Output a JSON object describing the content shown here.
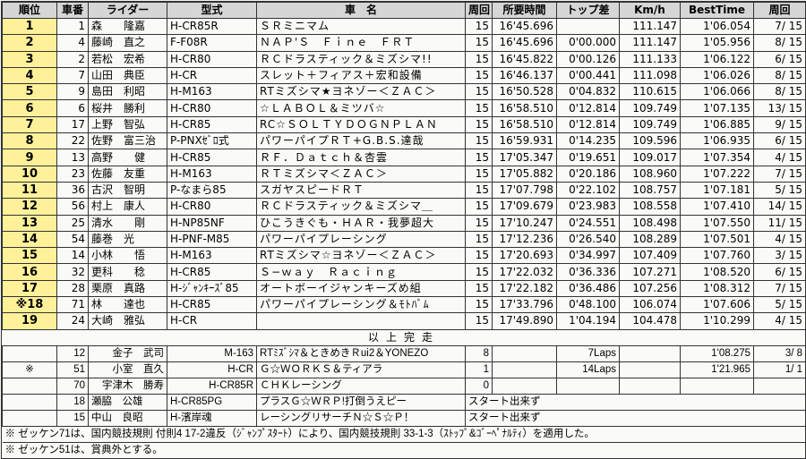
{
  "headers": [
    "順位",
    "車番",
    "ライダー",
    "型式",
    "車　名",
    "周回",
    "所要時間",
    "トップ差",
    "Km/h",
    "BestTime",
    "周回"
  ],
  "finished": [
    [
      "1",
      "1",
      "森　　隆嘉",
      "H-CR85R",
      "ＳＲミニマム",
      "15",
      "16'45.696",
      "",
      "111.147",
      "1'06.054",
      "7/ 15"
    ],
    [
      "2",
      "4",
      "藤崎　直之",
      "F-F08R",
      "ＮＡＰ'Ｓ　Ｆｉｎｅ　ＦＲＴ",
      "15",
      "16'45.696",
      "0'00.000",
      "111.147",
      "1'05.956",
      "8/ 15"
    ],
    [
      "3",
      "2",
      "若松　宏希",
      "H-CR80",
      "ＲＣドラスティック＆ミズシマ!!",
      "15",
      "16'45.822",
      "0'00.126",
      "111.133",
      "1'06.122",
      "6/ 15"
    ],
    [
      "4",
      "7",
      "山田　典臣",
      "H-CR",
      "スレット＋フィアス＋宏和設備",
      "15",
      "16'46.137",
      "0'00.441",
      "111.098",
      "1'06.026",
      "8/ 15"
    ],
    [
      "5",
      "9",
      "島田　利昭",
      "H-M163",
      "RTミズシマ★ヨネゾー＜ＺＡＣ＞",
      "15",
      "16'50.528",
      "0'04.832",
      "110.615",
      "1'06.066",
      "8/ 15"
    ],
    [
      "6",
      "6",
      "桜井　勝利",
      "H-CR80",
      "☆ＬＡＢＯＬ＆ミツバ☆",
      "15",
      "16'58.510",
      "0'12.814",
      "109.749",
      "1'07.135",
      "13/ 15"
    ],
    [
      "7",
      "17",
      "上野　智弘",
      "H-CR85",
      "RC☆ＳＯＬＴＹＤＯＧＮＰＬＡＮ",
      "15",
      "16'58.510",
      "0'12.814",
      "109.749",
      "1'06.885",
      "9/ 15"
    ],
    [
      "8",
      "22",
      "佐野　富三治",
      "P-PNXｾﾞﾛ式",
      "パワーパイプＲＴ+G.B.S.達哉",
      "15",
      "16'59.931",
      "0'14.235",
      "109.596",
      "1'06.935",
      "6/ 15"
    ],
    [
      "9",
      "13",
      "高野　　健",
      "H-CR85",
      "ＲＦ．Ｄａｔｃｈ＆杏雲",
      "15",
      "17'05.347",
      "0'19.651",
      "109.017",
      "1'07.354",
      "4/ 15"
    ],
    [
      "10",
      "23",
      "佐藤　友重",
      "H-M163",
      "ＲＴミズシマ＜ＺＡＣ＞",
      "15",
      "17'05.882",
      "0'20.186",
      "108.960",
      "1'07.222",
      "7/ 15"
    ],
    [
      "11",
      "36",
      "古沢　智明",
      "P-なまら85",
      "スガヤスピードＲＴ",
      "15",
      "17'07.798",
      "0'22.102",
      "108.757",
      "1'07.181",
      "5/ 15"
    ],
    [
      "12",
      "56",
      "村上　康人",
      "H-CR80",
      "ＲＣドラスティック＆ミズシマ＿",
      "15",
      "17'09.679",
      "0'23.983",
      "108.558",
      "1'07.410",
      "14/ 15"
    ],
    [
      "13",
      "25",
      "清水　　剛",
      "H-NP85NF",
      "ひこうきぐも・ＨＡＲ・我夢超大",
      "15",
      "17'10.247",
      "0'24.551",
      "108.498",
      "1'07.550",
      "11/ 15"
    ],
    [
      "14",
      "54",
      "藤巻　光",
      "H-PNF-M85",
      "パワーパイプレーシング",
      "15",
      "17'12.236",
      "0'26.540",
      "108.289",
      "1'07.501",
      "4/ 15"
    ],
    [
      "15",
      "14",
      "小林　　悟",
      "H-M163",
      "RTミズシマ☆ヨネゾー＜ＺＡＣ＞",
      "15",
      "17'20.693",
      "0'34.997",
      "107.409",
      "1'07.760",
      "3/ 15"
    ],
    [
      "16",
      "32",
      "更科　　稔",
      "H-CR85",
      "Ｓ−ｗａｙ　Ｒａｃｉｎｇ",
      "15",
      "17'22.032",
      "0'36.336",
      "107.271",
      "1'08.520",
      "6/ 15"
    ],
    [
      "17",
      "28",
      "栗原　真路",
      "H-ｼﾞｬﾝｷｰｽﾞ85",
      "オートボーイジャンキーズめ組",
      "15",
      "17'22.182",
      "0'36.486",
      "107.256",
      "1'08.312",
      "7/ 15"
    ],
    [
      "※18",
      "71",
      "林　　達也",
      "H-CR85",
      "パワーパイプレーシング＆ﾓﾄﾊﾞﾑ",
      "15",
      "17'33.796",
      "0'48.100",
      "106.074",
      "1'07.606",
      "5/ 15"
    ],
    [
      "19",
      "24",
      "大崎　雅弘",
      "H-CR",
      "",
      "15",
      "17'49.890",
      "1'04.194",
      "104.478",
      "1'10.299",
      "4/ 15"
    ]
  ],
  "finished_label": "以上完走",
  "others": [
    [
      "",
      "12",
      "金子　武司",
      "M-163",
      "RTﾐｽﾞｼﾏ＆ときめきＲui2＆YONEZO",
      "8",
      "",
      "7Laps",
      "",
      "1'08.275",
      "3/ 8"
    ],
    [
      "※",
      "51",
      "小室　直久",
      "H-CR",
      "Ｇ☆ＷＯＲＫＳ＆ティアラ",
      "1",
      "",
      "14Laps",
      "",
      "1'21.965",
      "1/ 1"
    ],
    [
      "",
      "70",
      "宇津木　勝寿",
      "H-CR85R",
      "ＣＨＫレーシング",
      "0",
      "",
      "",
      "",
      "",
      ""
    ]
  ],
  "dns": [
    [
      "",
      "18",
      "瀬脇　公雄",
      "H-CR85PG",
      "プラスＧ☆ＷＲＰ!打倒うえピー",
      "スタート出来ず"
    ],
    [
      "",
      "15",
      "中山　良昭",
      "H-濱岸魂",
      "レーシングリサーチＮ☆Ｓ☆Ｐ！",
      "スタート出来ず"
    ]
  ],
  "notes": [
    "※ ゼッケン71は、国内競技規則 付則4 17-2違反（ｼﾞｬﾝﾌﾟｽﾀｰﾄ）により、国内競技規則 33-1-3（ｽﾄｯﾌﾟ&ｺﾞｰﾍﾟﾅﾙﾃｨ）を適用した。",
    "※ ゼッケン51は、賞典外とする。"
  ],
  "colors": {
    "position_cell": "#fff19a",
    "header": "#d6d6d6"
  }
}
